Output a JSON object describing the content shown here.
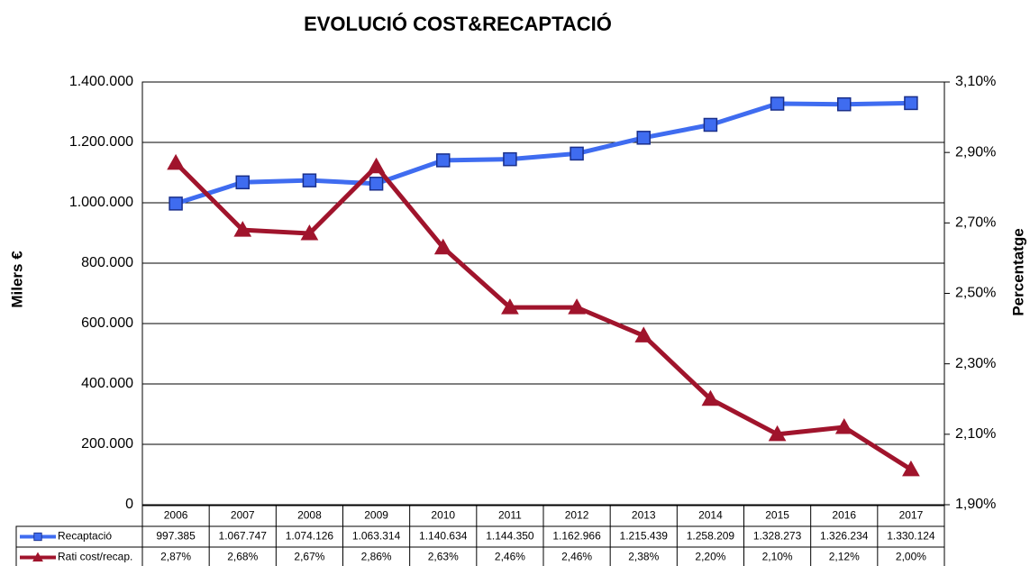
{
  "chart_data": {
    "type": "line",
    "title": "EVOLUCIÓ COST&RECAPTACIÓ",
    "ylabel": "Milers €",
    "y2label": "Percentatge",
    "categories": [
      "2006",
      "2007",
      "2008",
      "2009",
      "2010",
      "2011",
      "2012",
      "2013",
      "2014",
      "2015",
      "2016",
      "2017"
    ],
    "series": [
      {
        "name": "Recaptació",
        "color": "#3f6cf0",
        "marker": "square",
        "values": [
          997385,
          1067747,
          1074126,
          1063314,
          1140634,
          1144350,
          1162966,
          1215439,
          1258209,
          1328273,
          1326234,
          1330124
        ],
        "value_labels": [
          "997.385",
          "1.067.747",
          "1.074.126",
          "1.063.314",
          "1.140.634",
          "1.144.350",
          "1.162.966",
          "1.215.439",
          "1.258.209",
          "1.328.273",
          "1.326.234",
          "1.330.124"
        ]
      },
      {
        "name": "Rati cost/recap.",
        "color": "#a0142c",
        "marker": "triangle",
        "axis": "y2",
        "values": [
          2.87,
          2.68,
          2.67,
          2.86,
          2.63,
          2.46,
          2.46,
          2.38,
          2.2,
          2.1,
          2.12,
          2.0
        ],
        "value_labels": [
          "2,87%",
          "2,68%",
          "2,67%",
          "2,86%",
          "2,63%",
          "2,46%",
          "2,46%",
          "2,38%",
          "2,20%",
          "2,10%",
          "2,12%",
          "2,00%"
        ]
      }
    ],
    "ylim": [
      0,
      1400000
    ],
    "yticks": [
      0,
      {
        "value": 200000,
        "label": "200.000"
      },
      {
        "value": 400000,
        "label": "400.000"
      },
      {
        "value": 600000,
        "label": "600.000"
      },
      {
        "value": 800000,
        "label": "800.000"
      },
      {
        "value": 1000000,
        "label": "1.000.000"
      },
      {
        "value": 1200000,
        "label": "1.200.000"
      },
      {
        "value": 1400000,
        "label": "1.400.000"
      }
    ],
    "y2lim": [
      1.9,
      3.1
    ],
    "y2ticks": [
      {
        "value": 1.9,
        "label": "1,90%"
      },
      {
        "value": 2.1,
        "label": "2,10%"
      },
      {
        "value": 2.3,
        "label": "2,30%"
      },
      {
        "value": 2.5,
        "label": "2,50%"
      },
      {
        "value": 2.7,
        "label": "2,70%"
      },
      {
        "value": 2.9,
        "label": "2,90%"
      },
      {
        "value": 3.1,
        "label": "3,10%"
      }
    ],
    "grid": true
  }
}
